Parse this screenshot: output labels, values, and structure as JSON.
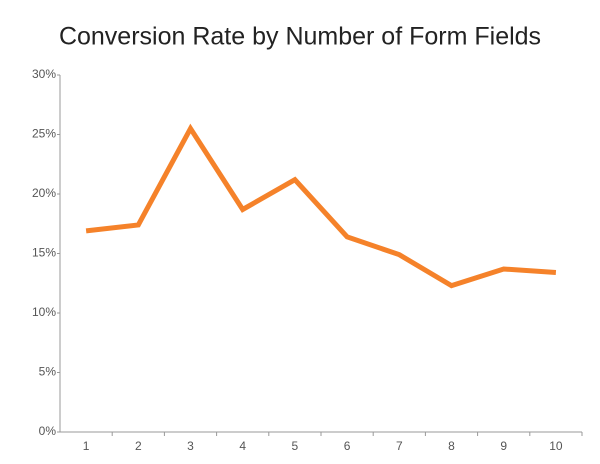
{
  "chart_data": {
    "type": "line",
    "title": "Conversion Rate by Number of Form Fields",
    "categories": [
      "1",
      "2",
      "3",
      "4",
      "5",
      "6",
      "7",
      "8",
      "9",
      "10"
    ],
    "series": [
      {
        "name": "Conversion Rate",
        "color": "#f5822a",
        "values": [
          16.9,
          17.4,
          25.5,
          18.7,
          21.2,
          16.4,
          14.9,
          12.3,
          13.7,
          13.4
        ]
      }
    ],
    "ylim": [
      0,
      30
    ],
    "yticks": [
      {
        "value": 0,
        "label": "0%"
      },
      {
        "value": 5,
        "label": "5%"
      },
      {
        "value": 10,
        "label": "10%"
      },
      {
        "value": 15,
        "label": "15%"
      },
      {
        "value": 20,
        "label": "20%"
      },
      {
        "value": 25,
        "label": "25%"
      },
      {
        "value": 30,
        "label": "30%"
      }
    ],
    "grid": false
  }
}
